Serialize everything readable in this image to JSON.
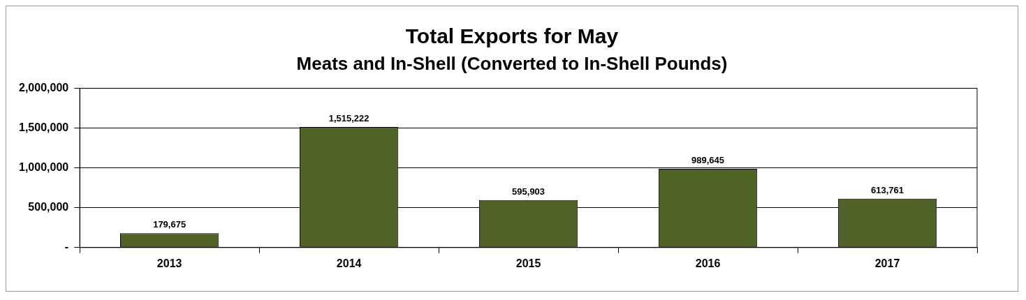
{
  "chart_data": {
    "type": "bar",
    "title": "Total Exports for May",
    "subtitle": "Meats and In-Shell (Converted to In-Shell Pounds)",
    "categories": [
      "2013",
      "2014",
      "2015",
      "2016",
      "2017"
    ],
    "values": [
      179675,
      1515222,
      595903,
      989645,
      613761
    ],
    "value_labels": [
      "179,675",
      "1,515,222",
      "595,903",
      "989,645",
      "613,761"
    ],
    "color": "#4f6228",
    "ylim": [
      0,
      2000000
    ],
    "yticks": [
      {
        "value": 0,
        "label": "-"
      },
      {
        "value": 500000,
        "label": "500,000"
      },
      {
        "value": 1000000,
        "label": "1,000,000"
      },
      {
        "value": 1500000,
        "label": "1,500,000"
      },
      {
        "value": 2000000,
        "label": "2,000,000"
      }
    ],
    "grid": "y",
    "legend": false
  }
}
